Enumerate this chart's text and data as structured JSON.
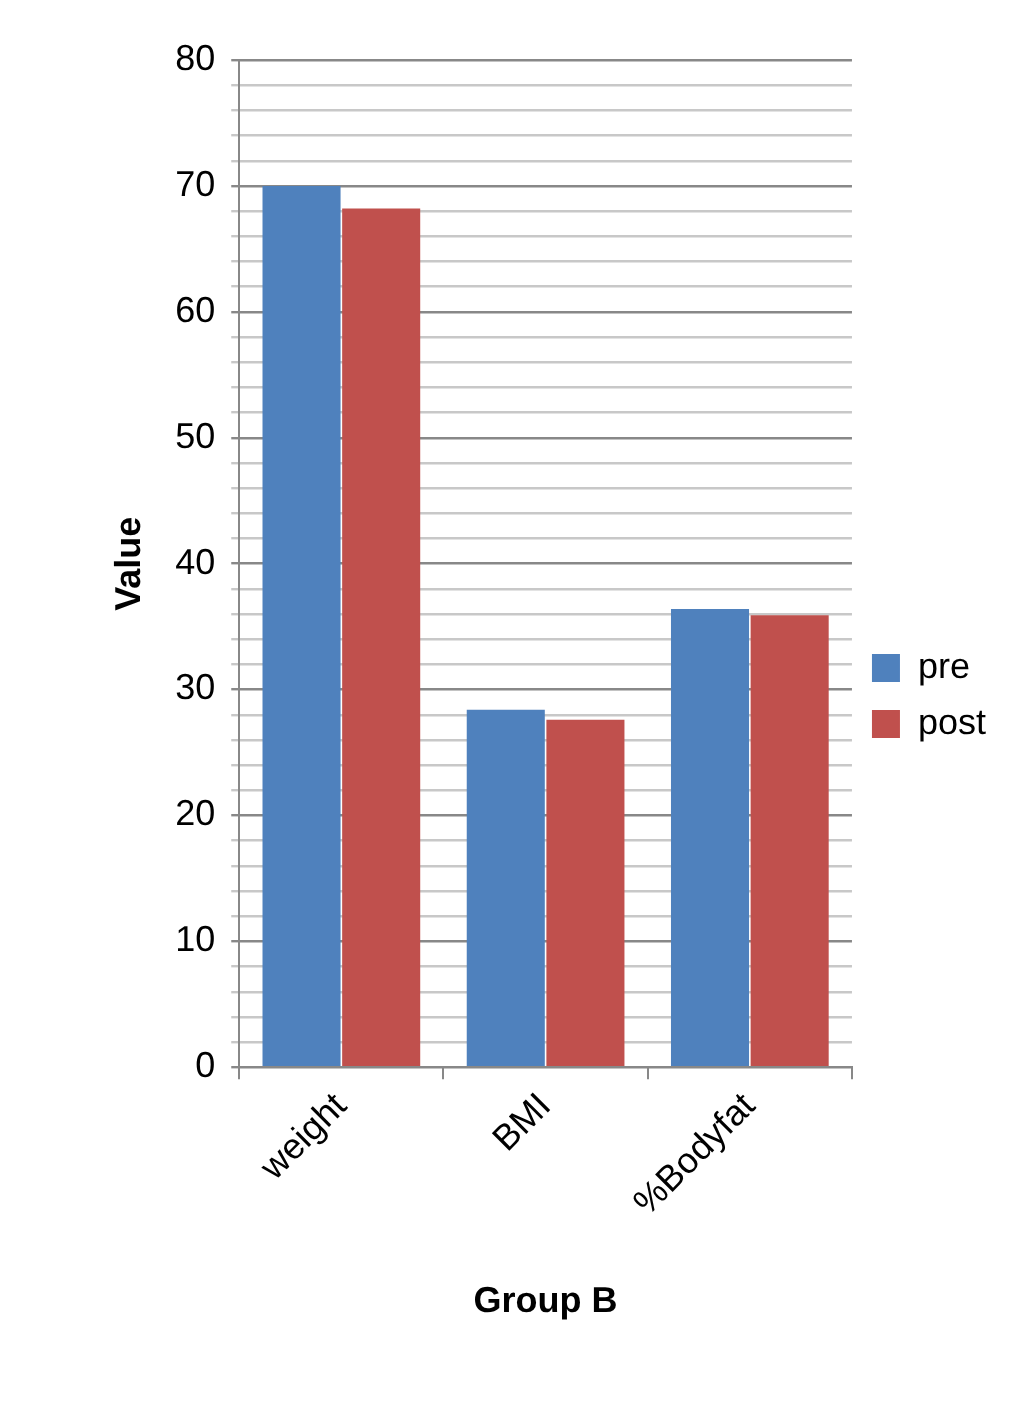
{
  "chart_data": {
    "type": "bar",
    "xlabel": "Group B",
    "ylabel": "Value",
    "categories": [
      "weight",
      "BMI",
      "%Bodyfat"
    ],
    "series": [
      {
        "name": "pre",
        "color": "#4f81bd",
        "values": [
          70.0,
          28.4,
          36.4
        ]
      },
      {
        "name": "post",
        "color": "#c0504d",
        "values": [
          68.2,
          27.6,
          35.9
        ]
      }
    ],
    "ylim": [
      0,
      80
    ],
    "yticks": [
      0,
      {
        "value": 2,
        "label": null
      },
      {
        "value": 4,
        "label": null
      },
      {
        "value": 6,
        "label": null
      },
      {
        "value": 8,
        "label": null
      },
      10,
      {
        "value": 12,
        "label": null
      },
      {
        "value": 14,
        "label": null
      },
      {
        "value": 16,
        "label": null
      },
      {
        "value": 18,
        "label": null
      },
      20,
      {
        "value": 22,
        "label": null
      },
      {
        "value": 24,
        "label": null
      },
      {
        "value": 26,
        "label": null
      },
      {
        "value": 28,
        "label": null
      },
      30,
      {
        "value": 32,
        "label": null
      },
      {
        "value": 34,
        "label": null
      },
      {
        "value": 36,
        "label": null
      },
      {
        "value": 38,
        "label": null
      },
      40,
      {
        "value": 42,
        "label": null
      },
      {
        "value": 44,
        "label": null
      },
      {
        "value": 46,
        "label": null
      },
      {
        "value": 48,
        "label": null
      },
      50,
      {
        "value": 52,
        "label": null
      },
      {
        "value": 54,
        "label": null
      },
      {
        "value": 56,
        "label": null
      },
      {
        "value": 58,
        "label": null
      },
      60,
      {
        "value": 62,
        "label": null
      },
      {
        "value": 64,
        "label": null
      },
      {
        "value": 66,
        "label": null
      },
      {
        "value": 68,
        "label": null
      },
      70,
      {
        "value": 72,
        "label": null
      },
      {
        "value": 74,
        "label": null
      },
      {
        "value": 76,
        "label": null
      },
      {
        "value": 78,
        "label": null
      },
      80
    ],
    "grid": true,
    "legend": "right"
  }
}
